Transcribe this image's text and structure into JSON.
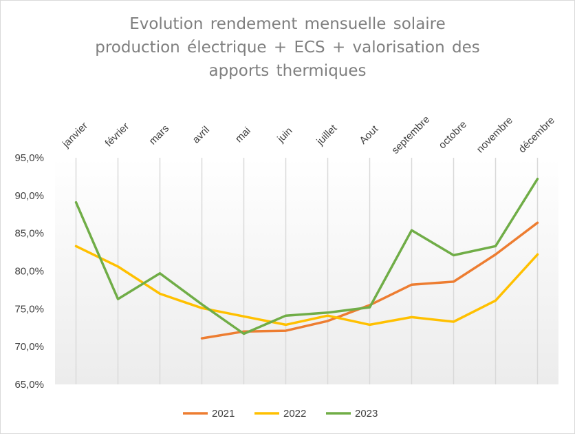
{
  "chart_data": {
    "type": "line",
    "title_lines": [
      "Evolution rendement mensuelle solaire",
      "production électrique + ECS + valorisation des",
      "apports thermiques"
    ],
    "categories": [
      "janvier",
      "février",
      "mars",
      "avril",
      "mai",
      "juin",
      "juillet",
      "Aout",
      "septembre",
      "octobre",
      "novembre",
      "décembre"
    ],
    "ylim": [
      65,
      95
    ],
    "yticks": [
      65,
      70,
      75,
      80,
      85,
      90,
      95
    ],
    "ytick_labels": [
      "65,0%",
      "70,0%",
      "75,0%",
      "80,0%",
      "85,0%",
      "90,0%",
      "95,0%"
    ],
    "xaxis_position": "top",
    "grid": {
      "vertical": true,
      "horizontal": false
    },
    "legend_position": "bottom",
    "series": [
      {
        "name": "2021",
        "color": "#ed7d31",
        "values": [
          null,
          null,
          null,
          71.1,
          72.0,
          72.1,
          73.4,
          75.5,
          78.2,
          78.6,
          82.2,
          86.4
        ]
      },
      {
        "name": "2022",
        "color": "#ffc000",
        "values": [
          83.3,
          80.6,
          77.0,
          75.1,
          74.0,
          72.9,
          74.1,
          72.9,
          73.9,
          73.3,
          76.1,
          82.2
        ]
      },
      {
        "name": "2023",
        "color": "#70ad47",
        "values": [
          89.1,
          76.3,
          79.7,
          75.6,
          71.7,
          74.1,
          74.5,
          75.2,
          85.4,
          82.1,
          83.3,
          92.2
        ]
      }
    ]
  }
}
